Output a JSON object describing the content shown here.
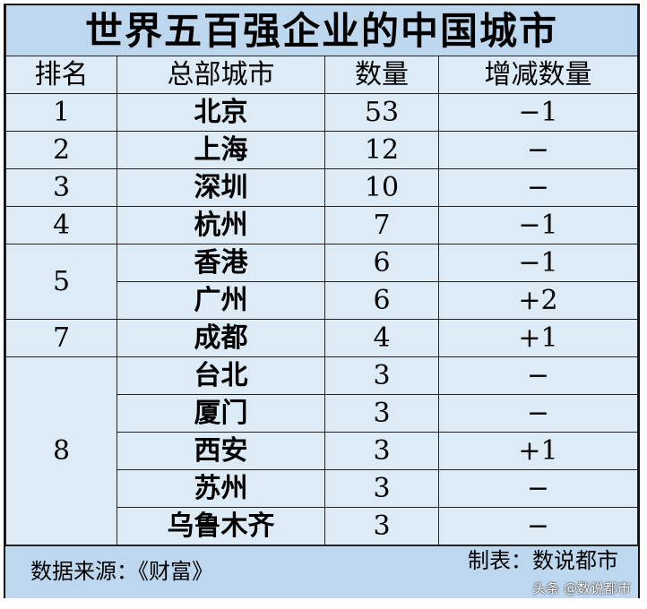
{
  "title": "世界五百强企业的中国城市",
  "headers": [
    "排名",
    "总部城市",
    "数量",
    "增减数量"
  ],
  "rows": [
    {
      "rank": "1",
      "city": "北京",
      "count": "53",
      "change": "−1"
    },
    {
      "rank": "2",
      "city": "上海",
      "count": "12",
      "change": "−"
    },
    {
      "rank": "3",
      "city": "深圳",
      "count": "10",
      "change": "−"
    },
    {
      "rank": "4",
      "city": "杭州",
      "count": "7",
      "change": "−1"
    },
    {
      "rank": "5",
      "city": "香港",
      "count": "6",
      "change": "−1"
    },
    {
      "rank": "",
      "city": "广州",
      "count": "6",
      "change": "+2"
    },
    {
      "rank": "7",
      "city": "成都",
      "count": "4",
      "change": "+1"
    },
    {
      "rank": "8",
      "city": "台北",
      "count": "3",
      "change": "−"
    },
    {
      "rank": "",
      "city": "厦门",
      "count": "3",
      "change": "−"
    },
    {
      "rank": "",
      "city": "西安",
      "count": "3",
      "change": "+1"
    },
    {
      "rank": "",
      "city": "苏州",
      "count": "3",
      "change": "−"
    },
    {
      "rank": "",
      "city": "乌鲁木齐",
      "count": "3",
      "change": "−"
    }
  ],
  "footer": {
    "source": "数据来源：《财富》",
    "maker": "制表：数说都市",
    "watermark": "头条 @数说都市"
  },
  "colors": {
    "title_bg": "#bdd7ee",
    "row_bg": "#ddebf7",
    "footer_bg": "#bdd7ee"
  }
}
